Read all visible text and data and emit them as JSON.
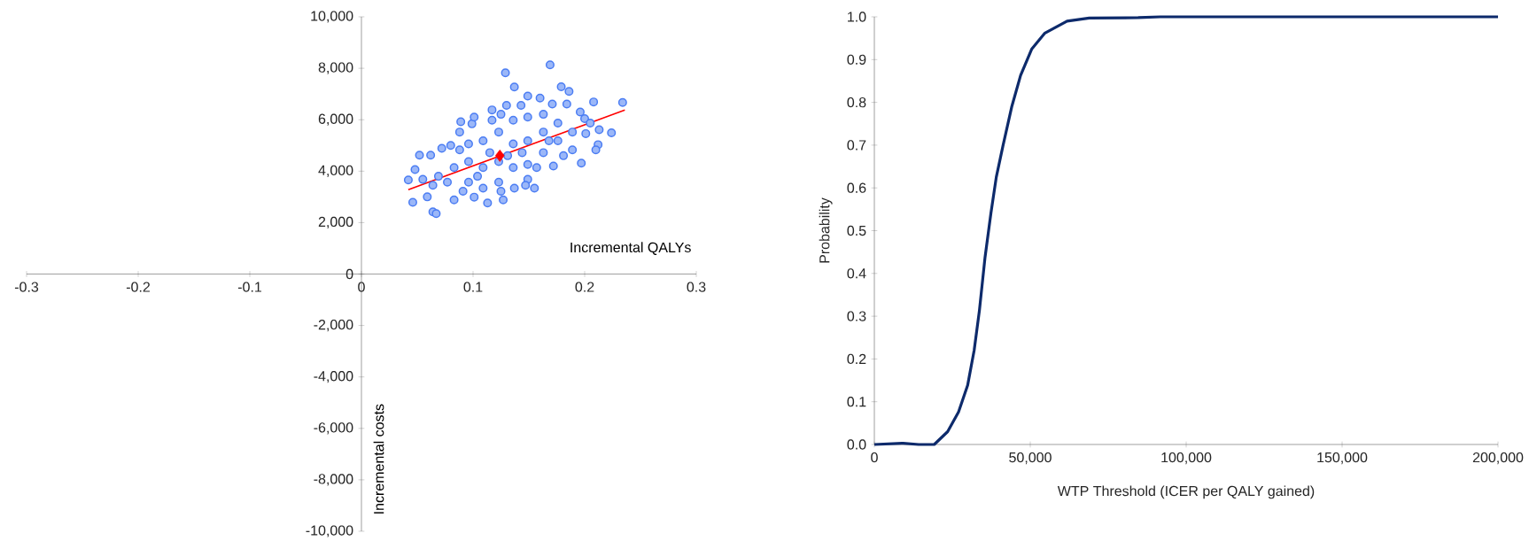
{
  "chart_data": [
    {
      "type": "scatter",
      "xlabel": "Incremental QALYs",
      "ylabel": "Incremental costs",
      "xlim": [
        -0.3,
        0.3
      ],
      "ylim": [
        -10000,
        10000
      ],
      "xticks": [
        {
          "value": -0.3,
          "label": "-0.3"
        },
        {
          "value": -0.2,
          "label": "-0.2"
        },
        {
          "value": -0.1,
          "label": "-0.1"
        },
        {
          "value": 0,
          "label": "0"
        },
        {
          "value": 0.1,
          "label": "0.1"
        },
        {
          "value": 0.2,
          "label": "0.2"
        },
        {
          "value": 0.3,
          "label": "0.3"
        }
      ],
      "yticks": [
        {
          "value": -10000,
          "label": "-10,000"
        },
        {
          "value": -8000,
          "label": "-8,000"
        },
        {
          "value": -6000,
          "label": "-6,000"
        },
        {
          "value": -4000,
          "label": "-4,000"
        },
        {
          "value": -2000,
          "label": "-2,000"
        },
        {
          "value": 0,
          "label": "0"
        },
        {
          "value": 2000,
          "label": "2,000"
        },
        {
          "value": 4000,
          "label": "4,000"
        },
        {
          "value": 6000,
          "label": "6,000"
        },
        {
          "value": 8000,
          "label": "8,000"
        },
        {
          "value": 10000,
          "label": "10,000"
        }
      ],
      "series": [
        {
          "type": "scatter",
          "marker": "circle",
          "color": "#4a7cf3",
          "x": [
            0.169,
            0.129,
            0.137,
            0.149,
            0.179,
            0.186,
            0.234,
            0.208,
            0.224,
            0.213,
            0.212,
            0.21,
            0.197,
            0.201,
            0.042,
            0.046,
            0.048,
            0.052,
            0.062,
            0.064,
            0.067,
            0.055,
            0.113,
            0.127,
            0.089,
            0.099,
            0.117,
            0.13,
            0.143,
            0.16,
            0.171,
            0.184,
            0.196,
            0.172,
            0.155,
            0.137,
            0.083,
            0.059,
            0.072,
            0.08,
            0.069,
            0.083,
            0.096,
            0.096,
            0.109,
            0.109,
            0.109,
            0.123,
            0.123,
            0.123,
            0.136,
            0.136,
            0.136,
            0.149,
            0.149,
            0.149,
            0.149,
            0.163,
            0.163,
            0.163,
            0.176,
            0.176,
            0.181,
            0.189,
            0.189,
            0.088,
            0.088,
            0.077,
            0.064,
            0.101,
            0.117,
            0.125,
            0.096,
            0.144,
            0.157,
            0.131,
            0.115,
            0.104,
            0.091,
            0.101,
            0.125,
            0.147,
            0.168,
            0.2,
            0.205
          ],
          "values": [
            8130,
            7820,
            7270,
            6920,
            7280,
            7100,
            6670,
            6690,
            5490,
            5610,
            5030,
            4830,
            4310,
            5460,
            3660,
            2790,
            4060,
            4620,
            4620,
            2420,
            2350,
            3680,
            2760,
            2880,
            5920,
            5840,
            6380,
            6560,
            6560,
            6840,
            6610,
            6610,
            6300,
            4200,
            3340,
            3340,
            2880,
            3000,
            4890,
            5000,
            3800,
            4140,
            4370,
            3570,
            5180,
            4140,
            3340,
            5520,
            4370,
            3570,
            5980,
            5060,
            4140,
            6100,
            5180,
            4260,
            3680,
            6210,
            5520,
            4720,
            5870,
            5180,
            4600,
            5520,
            4830,
            5520,
            4830,
            3570,
            3450,
            6100,
            5980,
            6210,
            5060,
            4720,
            4140,
            4600,
            4720,
            3800,
            3220,
            2990,
            3220,
            3450,
            5180,
            6040,
            5870
          ]
        },
        {
          "type": "line",
          "marker": "none",
          "color": "#ff0000",
          "x": [
            0.042,
            0.236
          ],
          "values": [
            3280,
            6380
          ]
        },
        {
          "type": "scatter",
          "marker": "diamond",
          "color": "#ff0000",
          "x": [
            0.124
          ],
          "values": [
            4600
          ]
        }
      ]
    },
    {
      "type": "line",
      "xlabel": "WTP Threshold (ICER per QALY gained)",
      "ylabel": "Probability",
      "xlim": [
        0,
        200000
      ],
      "ylim": [
        0,
        1
      ],
      "xticks": [
        {
          "value": 0,
          "label": "0"
        },
        {
          "value": 50000,
          "label": "50,000"
        },
        {
          "value": 100000,
          "label": "100,000"
        },
        {
          "value": 150000,
          "label": "150,000"
        },
        {
          "value": 200000,
          "label": "200,000"
        }
      ],
      "yticks": [
        {
          "value": 0,
          "label": "0.0"
        },
        {
          "value": 0.1,
          "label": "0.1"
        },
        {
          "value": 0.2,
          "label": "0.2"
        },
        {
          "value": 0.3,
          "label": "0.3"
        },
        {
          "value": 0.4,
          "label": "0.4"
        },
        {
          "value": 0.5,
          "label": "0.5"
        },
        {
          "value": 0.6,
          "label": "0.6"
        },
        {
          "value": 0.7,
          "label": "0.7"
        },
        {
          "value": 0.8,
          "label": "0.8"
        },
        {
          "value": 0.9,
          "label": "0.9"
        },
        {
          "value": 1,
          "label": "1.0"
        }
      ],
      "series": [
        {
          "color": "#0d2a6b",
          "x": [
            0,
            9240,
            14200,
            19200,
            23500,
            27000,
            29900,
            32000,
            33700,
            35500,
            37400,
            39100,
            41200,
            44100,
            46900,
            50500,
            54700,
            61800,
            68900,
            84600,
            91700,
            200000
          ],
          "values": [
            0,
            0.003,
            0,
            0,
            0.03,
            0.076,
            0.138,
            0.22,
            0.314,
            0.438,
            0.542,
            0.625,
            0.697,
            0.791,
            0.863,
            0.925,
            0.962,
            0.99,
            0.997,
            0.998,
            1,
            1
          ]
        }
      ]
    }
  ]
}
